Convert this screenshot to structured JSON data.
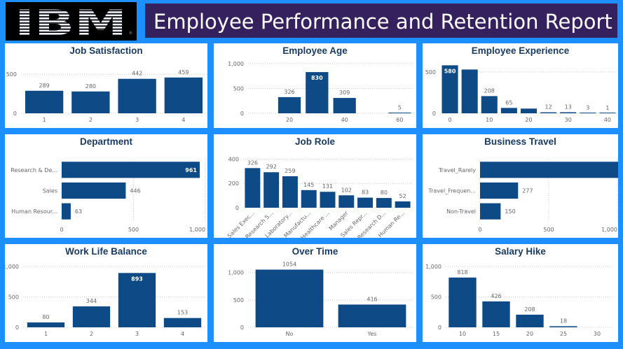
{
  "header": {
    "logo_text": "IBM",
    "logo_mark": "®",
    "title": "Employee Performance and Retention Report"
  },
  "colors": {
    "background": "#1e8fff",
    "title_bar": "#35215e",
    "bar": "#0e4a86",
    "panel": "#ffffff"
  },
  "chart_data": [
    {
      "id": "job-satisfaction",
      "type": "bar",
      "title": "Job Satisfaction",
      "categories": [
        "1",
        "2",
        "3",
        "4"
      ],
      "values": [
        289,
        280,
        442,
        459
      ],
      "ylim": [
        0,
        520
      ],
      "yticks": [
        0,
        500
      ],
      "ytick_labels": [
        "0",
        "500"
      ],
      "labels_inside": []
    },
    {
      "id": "employee-age",
      "type": "bar",
      "title": "Employee Age",
      "x": [
        10,
        20,
        30,
        40,
        50,
        60
      ],
      "values": [
        0,
        326,
        830,
        309,
        0,
        5
      ],
      "xticks": [
        20,
        40,
        60
      ],
      "xtick_labels": [
        "20",
        "40",
        "60"
      ],
      "ylim": [
        0,
        1000
      ],
      "yticks": [
        0,
        500,
        1000
      ],
      "ytick_labels": [
        "0",
        "500",
        "1,000"
      ],
      "shown_labels": [
        "326",
        "830",
        "309",
        "5"
      ],
      "labels_inside": [
        "830"
      ]
    },
    {
      "id": "employee-experience",
      "type": "bar",
      "title": "Employee Experience",
      "x": [
        0,
        5,
        10,
        15,
        20,
        25,
        30,
        35,
        40
      ],
      "values": [
        580,
        529,
        208,
        65,
        57,
        12,
        13,
        3,
        1
      ],
      "xticks": [
        0,
        10,
        20,
        30,
        40
      ],
      "xtick_labels": [
        "0",
        "10",
        "20",
        "30",
        "40"
      ],
      "ylim": [
        0,
        600
      ],
      "yticks": [
        0,
        500
      ],
      "ytick_labels": [
        "0",
        "500"
      ],
      "shown_labels": [
        "580",
        "208",
        "65",
        "12",
        "13",
        "3",
        "1"
      ],
      "labels_inside": [
        "580"
      ]
    },
    {
      "id": "department",
      "type": "hbar",
      "title": "Department",
      "categories": [
        "Research & De...",
        "Sales",
        "Human Resour..."
      ],
      "values": [
        961,
        446,
        63
      ],
      "xlim": [
        0,
        1000
      ],
      "xticks": [
        0,
        500,
        1000
      ],
      "xtick_labels": [
        "0",
        "500",
        "1,000"
      ],
      "labels_inside": [
        "961"
      ]
    },
    {
      "id": "job-role",
      "type": "bar",
      "title": "Job Role",
      "categories": [
        "Sales Exec...",
        "Research S...",
        "Laboratory...",
        "Manufactu...",
        "Healthcare ...",
        "Manager",
        "Sales Repr...",
        "Research D...",
        "Human Re..."
      ],
      "values": [
        326,
        292,
        259,
        145,
        131,
        102,
        83,
        80,
        52
      ],
      "ylim": [
        0,
        420
      ],
      "yticks": [
        0,
        200,
        400
      ],
      "ytick_labels": [
        "0",
        "200",
        "400"
      ],
      "labels_inside": []
    },
    {
      "id": "business-travel",
      "type": "hbar",
      "title": "Business Travel",
      "categories": [
        "Travel_Rarely",
        "Travel_Frequen...",
        "Non-Travel"
      ],
      "values": [
        1043,
        277,
        150
      ],
      "xlim": [
        0,
        1000
      ],
      "xticks": [
        0,
        500,
        1000
      ],
      "xtick_labels": [
        "0",
        "500",
        "1,000"
      ],
      "labels_inside": []
    },
    {
      "id": "work-life-balance",
      "type": "bar",
      "title": "Work Life Balance",
      "categories": [
        "1",
        "2",
        "3",
        "4"
      ],
      "values": [
        80,
        344,
        893,
        153
      ],
      "ylim": [
        0,
        1000
      ],
      "yticks": [
        0,
        500,
        1000
      ],
      "ytick_labels": [
        "0",
        "500",
        "1,000"
      ],
      "labels_inside": [
        "893"
      ]
    },
    {
      "id": "over-time",
      "type": "bar",
      "title": "Over Time",
      "categories": [
        "No",
        "Yes"
      ],
      "values": [
        1054,
        416
      ],
      "ylim": [
        0,
        1150
      ],
      "yticks": [
        0,
        500,
        1000
      ],
      "ytick_labels": [
        "0",
        "500",
        "1,000"
      ],
      "labels_inside": []
    },
    {
      "id": "salary-hike",
      "type": "bar",
      "title": "Salary Hike",
      "x": [
        10,
        15,
        20,
        25,
        30
      ],
      "values": [
        818,
        426,
        208,
        18,
        0
      ],
      "xticks": [
        10,
        15,
        20,
        25,
        30
      ],
      "xtick_labels": [
        "10",
        "15",
        "20",
        "25",
        "30"
      ],
      "ylim": [
        0,
        1000
      ],
      "yticks": [
        0,
        500,
        1000
      ],
      "ytick_labels": [
        "0",
        "500",
        "1,000"
      ],
      "shown_labels": [
        "818",
        "426",
        "208",
        "18"
      ],
      "labels_inside": []
    }
  ]
}
